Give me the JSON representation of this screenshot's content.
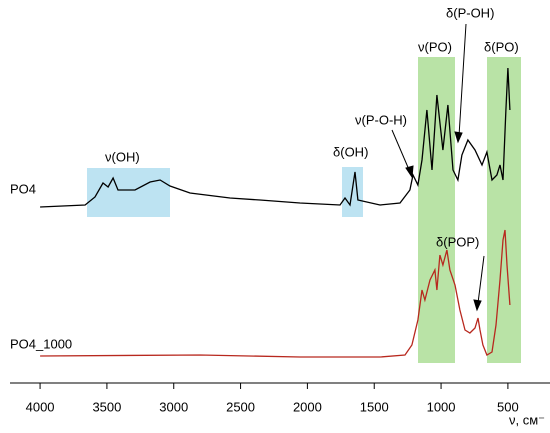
{
  "chart_data": {
    "type": "line",
    "x_label": "ν, см⁻",
    "xlim": [
      4225,
      185
    ],
    "xticks": [
      4000,
      3500,
      3000,
      2500,
      2000,
      1500,
      1000,
      500
    ],
    "ylim": [
      0,
      383
    ],
    "series": [
      {
        "name": "PO4",
        "color": "#000000",
        "x": [
          4000,
          3663,
          3589,
          3529,
          3491,
          3454,
          3417,
          3290,
          3177,
          3102,
          3028,
          2878,
          2579,
          2355,
          2055,
          1756,
          1719,
          1681,
          1644,
          1622,
          1457,
          1307,
          1233,
          1210,
          1173,
          1143,
          1106,
          1068,
          1031,
          986,
          949,
          911,
          874,
          844,
          799,
          746,
          694,
          657,
          619,
          582,
          559,
          537,
          515,
          500,
          485
        ],
        "values": [
          176,
          178,
          186,
          200,
          196,
          205,
          193,
          193,
          201,
          203,
          197,
          190,
          185,
          183,
          180,
          178,
          185,
          178,
          211,
          183,
          178,
          180,
          193,
          208,
          198,
          223,
          273,
          213,
          288,
          233,
          278,
          213,
          203,
          228,
          243,
          233,
          218,
          231,
          203,
          208,
          218,
          203,
          273,
          315,
          273
        ]
      },
      {
        "name": "PO4_1000",
        "color": "#b8281e",
        "x": [
          4000,
          2803,
          2055,
          1457,
          1270,
          1218,
          1173,
          1143,
          1121,
          1083,
          1046,
          1031,
          1009,
          986,
          956,
          934,
          896,
          859,
          821,
          784,
          746,
          724,
          709,
          687,
          657,
          619,
          589,
          559,
          537,
          522,
          507,
          485
        ],
        "values": [
          27,
          28,
          26,
          26,
          28,
          38,
          63,
          93,
          83,
          103,
          113,
          93,
          128,
          118,
          133,
          113,
          98,
          73,
          53,
          50,
          55,
          65,
          53,
          38,
          28,
          31,
          58,
          103,
          143,
          153,
          118,
          78
        ]
      }
    ],
    "annotations": [
      "ν(OH)",
      "δ(OH)",
      "ν(P-O-H)",
      "ν(PO)",
      "δ(P-OH)",
      "δ(PO)",
      "δ(POP)"
    ]
  }
}
